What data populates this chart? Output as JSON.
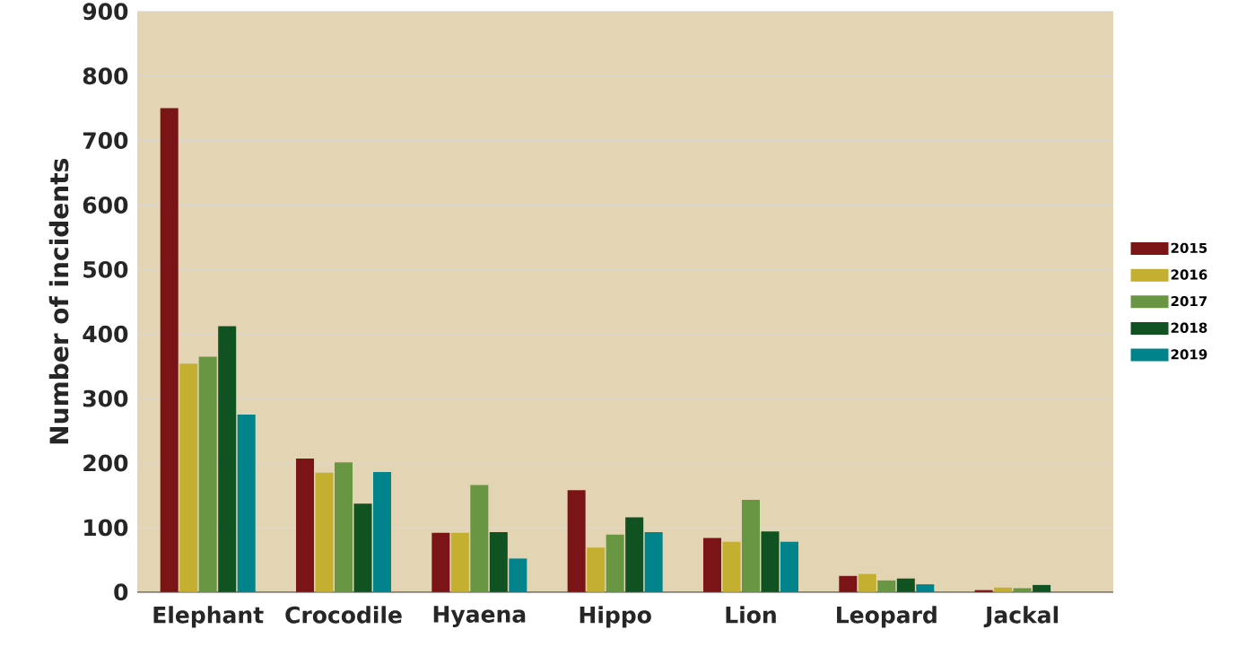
{
  "chart_data": {
    "type": "bar",
    "ylabel": "Number of incidents",
    "categories": [
      "Elephant",
      "Crocodile",
      "Hyaena",
      "Hippo",
      "Lion",
      "Leopard",
      "Jackal"
    ],
    "series": [
      {
        "name": "2015",
        "color": "#7b1416",
        "values": [
          750,
          207,
          92,
          158,
          84,
          25,
          3
        ]
      },
      {
        "name": "2016",
        "color": "#c4af30",
        "values": [
          354,
          185,
          92,
          69,
          78,
          28,
          7
        ]
      },
      {
        "name": "2017",
        "color": "#699642",
        "values": [
          365,
          201,
          166,
          89,
          143,
          18,
          6
        ]
      },
      {
        "name": "2018",
        "color": "#115222",
        "values": [
          412,
          137,
          93,
          116,
          94,
          21,
          11
        ]
      },
      {
        "name": "2019",
        "color": "#00838a",
        "values": [
          275,
          186,
          52,
          93,
          78,
          12,
          null
        ]
      }
    ],
    "ylim": [
      0,
      900
    ],
    "yticks": [
      0,
      100,
      200,
      300,
      400,
      500,
      600,
      700,
      800,
      900
    ],
    "grid": "y",
    "legend": "right"
  }
}
